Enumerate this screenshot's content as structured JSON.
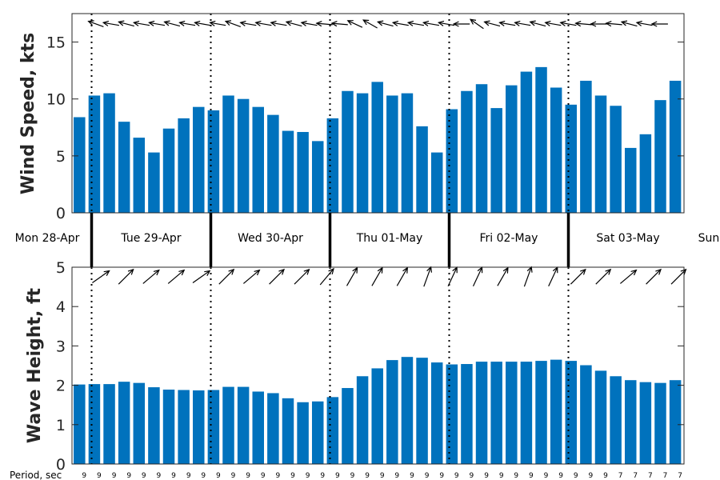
{
  "chart_data": [
    {
      "type": "bar",
      "ylabel": "Wind Speed, kts",
      "ylim": [
        0,
        17.5
      ],
      "yticks": [
        0,
        5,
        10,
        15
      ],
      "grid": false,
      "bar_color": "#0072bd",
      "values": [
        8.4,
        10.3,
        10.5,
        8.0,
        6.6,
        5.3,
        7.4,
        8.3,
        9.3,
        9.0,
        10.3,
        10.0,
        9.3,
        8.6,
        7.2,
        7.1,
        6.3,
        8.3,
        10.7,
        10.5,
        11.5,
        10.3,
        10.5,
        7.6,
        5.3,
        9.1,
        10.7,
        11.3,
        9.2,
        11.2,
        12.4,
        12.8,
        11.0,
        9.5,
        11.6,
        10.3,
        9.4,
        5.7,
        6.9,
        9.9,
        11.6
      ],
      "direction_arrows": "wind direction arrows drawn along the top of the panel, mostly pointing west"
    },
    {
      "type": "bar",
      "ylabel": "Wave Height, ft",
      "ylim": [
        0,
        5
      ],
      "yticks": [
        0,
        1,
        2,
        3,
        4,
        5
      ],
      "grid": false,
      "bar_color": "#0072bd",
      "values": [
        2.02,
        2.03,
        2.03,
        2.09,
        2.06,
        1.95,
        1.89,
        1.88,
        1.87,
        1.88,
        1.96,
        1.96,
        1.84,
        1.8,
        1.67,
        1.57,
        1.59,
        1.7,
        1.93,
        2.23,
        2.43,
        2.64,
        2.72,
        2.7,
        2.58,
        2.53,
        2.54,
        2.6,
        2.6,
        2.6,
        2.6,
        2.62,
        2.65,
        2.62,
        2.51,
        2.37,
        2.23,
        2.13,
        2.08,
        2.06,
        2.13
      ],
      "direction_arrows": "wave direction arrows drawn along the top of the panel, pointing north-east"
    }
  ],
  "days": [
    "Mon 28-Apr",
    "Tue 29-Apr",
    "Wed 30-Apr",
    "Thu 01-May",
    "Fri 02-May",
    "Sat 03-May",
    "Sun"
  ],
  "period": {
    "label": "Period, sec",
    "values": [
      "9",
      "9",
      "9",
      "9",
      "9",
      "9",
      "9",
      "9",
      "9",
      "9",
      "9",
      "9",
      "9",
      "9",
      "9",
      "9",
      "9",
      "9",
      "9",
      "9",
      "9",
      "9",
      "9",
      "9",
      "9",
      "9",
      "9",
      "9",
      "9",
      "9",
      "9",
      "9",
      "9",
      "9",
      "9",
      "9",
      "7",
      "7",
      "7",
      "7",
      "7"
    ]
  },
  "wind_arrows_deg": [
    200,
    190,
    195,
    190,
    190,
    195,
    190,
    190,
    190,
    200,
    190,
    190,
    190,
    195,
    190,
    185,
    185,
    205,
    210,
    195,
    190,
    190,
    190,
    190,
    180,
    215,
    195,
    190,
    190,
    195,
    190,
    190,
    185,
    180,
    185,
    195,
    190,
    180
  ],
  "wave_arrows_deg": [
    -35,
    -45,
    -40,
    -40,
    -35,
    -45,
    -40,
    -45,
    -45,
    -50,
    -60,
    -60,
    -60,
    -70,
    -65,
    -65,
    -60,
    -70,
    -65,
    -45,
    -45,
    -40,
    -45,
    -45
  ]
}
